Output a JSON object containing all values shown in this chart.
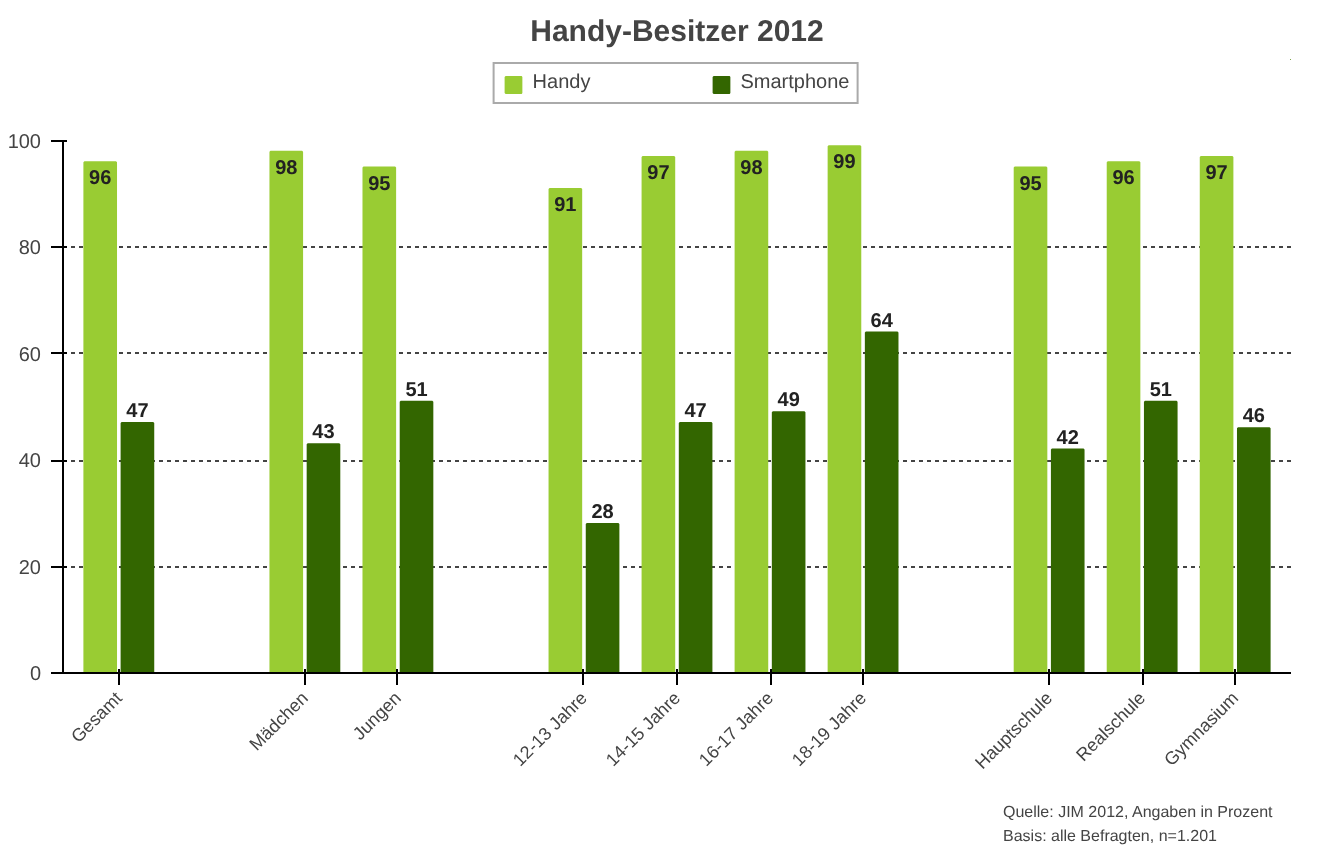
{
  "chart_data": {
    "type": "bar",
    "title": "Handy-Besitzer 2012",
    "categories": [
      "Gesamt",
      null,
      "Mädchen",
      "Jungen",
      null,
      "12-13 Jahre",
      "14-15 Jahre",
      "16-17 Jahre",
      "18-19 Jahre",
      null,
      "Hauptschule",
      "Realschule",
      "Gymnasium"
    ],
    "series": [
      {
        "name": "Handy",
        "color": "#99cc33",
        "values": [
          96,
          null,
          98,
          95,
          null,
          91,
          97,
          98,
          99,
          null,
          95,
          96,
          97
        ]
      },
      {
        "name": "Smartphone",
        "color": "#336600",
        "values": [
          47,
          null,
          43,
          51,
          null,
          28,
          47,
          49,
          64,
          null,
          42,
          51,
          46
        ]
      }
    ],
    "ylim": [
      0,
      100
    ],
    "yticks": [
      0,
      20,
      40,
      60,
      80,
      100
    ],
    "grid": "y",
    "legend": "top",
    "data_labels": true,
    "annotations": [
      "Quelle: JIM 2012, Angaben in Prozent",
      "Basis: alle Befragten, n=1.201"
    ]
  }
}
